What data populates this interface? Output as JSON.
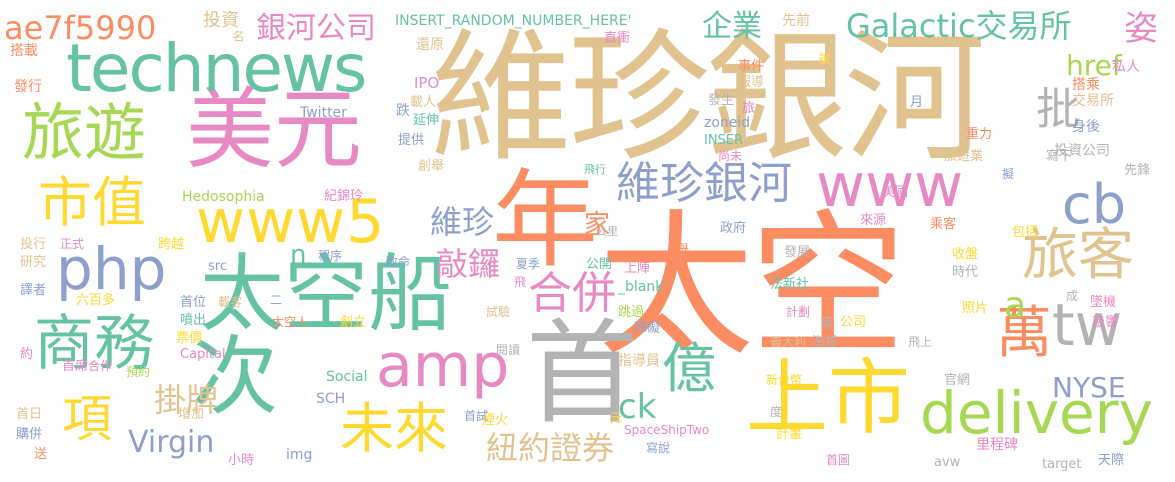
{
  "palette": {
    "tan": "#e1c38f",
    "orange": "#fc8d62",
    "green": "#66c2a5",
    "pink": "#e78ac3",
    "blue": "#8da0cb",
    "yellow": "#ffd92f",
    "lime": "#a6d854",
    "gray": "#b3b3b3"
  },
  "words": [
    {
      "text": "維珍銀河",
      "color": "tan"
    },
    {
      "text": "太空",
      "color": "orange"
    },
    {
      "text": "年",
      "color": "orange"
    },
    {
      "text": "首",
      "color": "gray"
    },
    {
      "text": "美元",
      "color": "pink"
    },
    {
      "text": "technews",
      "color": "green"
    },
    {
      "text": "太空船",
      "color": "green"
    },
    {
      "text": "上市",
      "color": "yellow"
    },
    {
      "text": "www5",
      "color": "yellow"
    },
    {
      "text": "www",
      "color": "pink"
    },
    {
      "text": "delivery",
      "color": "lime"
    },
    {
      "text": "旅遊",
      "color": "lime"
    },
    {
      "text": "次",
      "color": "green"
    },
    {
      "text": "amp",
      "color": "pink"
    },
    {
      "text": "php",
      "color": "blue"
    },
    {
      "text": "商務",
      "color": "green"
    },
    {
      "text": "tw",
      "color": "gray"
    },
    {
      "text": "cb",
      "color": "blue"
    },
    {
      "text": "旅客",
      "color": "tan"
    },
    {
      "text": "市值",
      "color": "yellow"
    },
    {
      "text": "未來",
      "color": "yellow"
    },
    {
      "text": "億",
      "color": "green"
    },
    {
      "text": "萬",
      "color": "orange"
    },
    {
      "text": "ae7f5990",
      "color": "orange"
    },
    {
      "text": "維珍銀河",
      "color": "blue"
    },
    {
      "text": "合併",
      "color": "pink"
    },
    {
      "text": "Galactic交易所",
      "color": "green"
    },
    {
      "text": "項",
      "color": "yellow"
    },
    {
      "text": "銀河公司",
      "color": "pink"
    },
    {
      "text": "Virgin",
      "color": "blue"
    },
    {
      "text": "掛牌",
      "color": "tan"
    },
    {
      "text": "紐約證券",
      "color": "tan"
    },
    {
      "text": "NYSE",
      "color": "blue"
    },
    {
      "text": "批",
      "color": "gray"
    },
    {
      "text": "企業",
      "color": "green"
    },
    {
      "text": "href",
      "color": "lime"
    },
    {
      "text": "姿",
      "color": "pink"
    },
    {
      "text": "維珍",
      "color": "blue"
    },
    {
      "text": "敲鑼",
      "color": "pink"
    },
    {
      "text": "ck",
      "color": "green"
    },
    {
      "text": "家",
      "color": "orange"
    },
    {
      "text": "a",
      "color": "lime"
    },
    {
      "text": "n",
      "color": "green"
    },
    {
      "text": "投資",
      "color": "tan"
    },
    {
      "text": "名",
      "color": "tan"
    },
    {
      "text": "INSERT_RANDOM_NUMBER_HERE'",
      "color": "green"
    },
    {
      "text": "先前",
      "color": "tan"
    },
    {
      "text": "搭載",
      "color": "orange"
    },
    {
      "text": "發行",
      "color": "orange"
    },
    {
      "text": "還原",
      "color": "tan"
    },
    {
      "text": "直衝",
      "color": "pink"
    },
    {
      "text": "號",
      "color": "yellow"
    },
    {
      "text": "私人",
      "color": "pink"
    },
    {
      "text": "IPO",
      "color": "pink"
    },
    {
      "text": "事件",
      "color": "orange"
    },
    {
      "text": "搭乘",
      "color": "orange"
    },
    {
      "text": "報導",
      "color": "tan"
    },
    {
      "text": "交易所",
      "color": "tan"
    },
    {
      "text": "載人",
      "color": "tan"
    },
    {
      "text": "發生",
      "color": "gray"
    },
    {
      "text": "旅",
      "color": "pink"
    },
    {
      "text": "跌",
      "color": "blue"
    },
    {
      "text": "Twitter",
      "color": "blue"
    },
    {
      "text": "月",
      "color": "blue"
    },
    {
      "text": "延伸",
      "color": "green"
    },
    {
      "text": "zoneid",
      "color": "blue"
    },
    {
      "text": "身後",
      "color": "blue"
    },
    {
      "text": "提供",
      "color": "blue"
    },
    {
      "text": "重力",
      "color": "orange"
    },
    {
      "text": "INSER",
      "color": "green"
    },
    {
      "text": "尚未",
      "color": "pink"
    },
    {
      "text": "寫下",
      "color": "gray"
    },
    {
      "text": "投資公司",
      "color": "gray"
    },
    {
      "text": "旅遊業",
      "color": "tan"
    },
    {
      "text": "先鋒",
      "color": "gray"
    },
    {
      "text": "創舉",
      "color": "tan"
    },
    {
      "text": "飛行",
      "color": "green"
    },
    {
      "text": "擬",
      "color": "blue"
    },
    {
      "text": "Hedosophia",
      "color": "lime"
    },
    {
      "text": "紀錦玲",
      "color": "pink"
    },
    {
      "text": "美國",
      "color": "pink"
    },
    {
      "text": "投行",
      "color": "tan"
    },
    {
      "text": "正式",
      "color": "pink"
    },
    {
      "text": "跨越",
      "color": "yellow"
    },
    {
      "text": "公里",
      "color": "gray"
    },
    {
      "text": "政府",
      "color": "blue"
    },
    {
      "text": "發展",
      "color": "gray"
    },
    {
      "text": "來源",
      "color": "pink"
    },
    {
      "text": "乘客",
      "color": "orange"
    },
    {
      "text": "包括",
      "color": "yellow"
    },
    {
      "text": "研究",
      "color": "tan"
    },
    {
      "text": "src",
      "color": "blue"
    },
    {
      "text": "程序",
      "color": "blue"
    },
    {
      "text": "致命",
      "color": "blue"
    },
    {
      "text": "夏季",
      "color": "blue"
    },
    {
      "text": "公開",
      "color": "green"
    },
    {
      "text": "上陣",
      "color": "pink"
    },
    {
      "text": "舉",
      "color": "orange"
    },
    {
      "text": "收盤",
      "color": "yellow"
    },
    {
      "text": "時代",
      "color": "gray"
    },
    {
      "text": "譯者",
      "color": "blue"
    },
    {
      "text": "六百多",
      "color": "yellow"
    },
    {
      "text": "首位",
      "color": "blue"
    },
    {
      "text": "載客",
      "color": "tan"
    },
    {
      "text": "二",
      "color": "blue"
    },
    {
      "text": "飛",
      "color": "pink"
    },
    {
      "text": "_blank'",
      "color": "green"
    },
    {
      "text": "法新社",
      "color": "green"
    },
    {
      "text": "成",
      "color": "gray"
    },
    {
      "text": "照片",
      "color": "yellow"
    },
    {
      "text": "墜機",
      "color": "pink"
    },
    {
      "text": "噴出",
      "color": "green"
    },
    {
      "text": "跳過",
      "color": "lime"
    },
    {
      "text": "計劃",
      "color": "pink"
    },
    {
      "text": "兩",
      "color": "gray"
    },
    {
      "text": "公司",
      "color": "yellow"
    },
    {
      "text": "敲響",
      "color": "pink"
    },
    {
      "text": "票價",
      "color": "yellow"
    },
    {
      "text": "太空人",
      "color": "orange"
    },
    {
      "text": "創立",
      "color": "yellow"
    },
    {
      "text": "試驗",
      "color": "tan"
    },
    {
      "text": "障礙",
      "color": "blue"
    },
    {
      "text": "Capital",
      "color": "pink"
    },
    {
      "text": "海拔",
      "color": "gray"
    },
    {
      "text": "義大利",
      "color": "tan"
    },
    {
      "text": "飛上",
      "color": "gray"
    },
    {
      "text": "約",
      "color": "pink"
    },
    {
      "text": "首席",
      "color": "pink"
    },
    {
      "text": "合作",
      "color": "pink"
    },
    {
      "text": "預約",
      "color": "lime"
    },
    {
      "text": "Social",
      "color": "green"
    },
    {
      "text": "閱讀",
      "color": "gray"
    },
    {
      "text": "指導員",
      "color": "tan"
    },
    {
      "text": "新台幣",
      "color": "yellow"
    },
    {
      "text": "官網",
      "color": "gray"
    },
    {
      "text": "SCH",
      "color": "blue"
    },
    {
      "text": "元",
      "color": "yellow"
    },
    {
      "text": "煙火",
      "color": "yellow"
    },
    {
      "text": "首日",
      "color": "tan"
    },
    {
      "text": "增加",
      "color": "tan"
    },
    {
      "text": "首試",
      "color": "blue"
    },
    {
      "text": "SpaceShipTwo",
      "color": "pink"
    },
    {
      "text": "度",
      "color": "gray"
    },
    {
      "text": "計畫",
      "color": "yellow"
    },
    {
      "text": "購併",
      "color": "blue"
    },
    {
      "text": "寫說",
      "color": "blue"
    },
    {
      "text": "送",
      "color": "orange"
    },
    {
      "text": "小時",
      "color": "pink"
    },
    {
      "text": "img",
      "color": "blue"
    },
    {
      "text": "首圖",
      "color": "pink"
    },
    {
      "text": "avw",
      "color": "gray"
    },
    {
      "text": "里程碑",
      "color": "pink"
    },
    {
      "text": "target",
      "color": "gray"
    },
    {
      "text": "天際",
      "color": "blue"
    }
  ]
}
